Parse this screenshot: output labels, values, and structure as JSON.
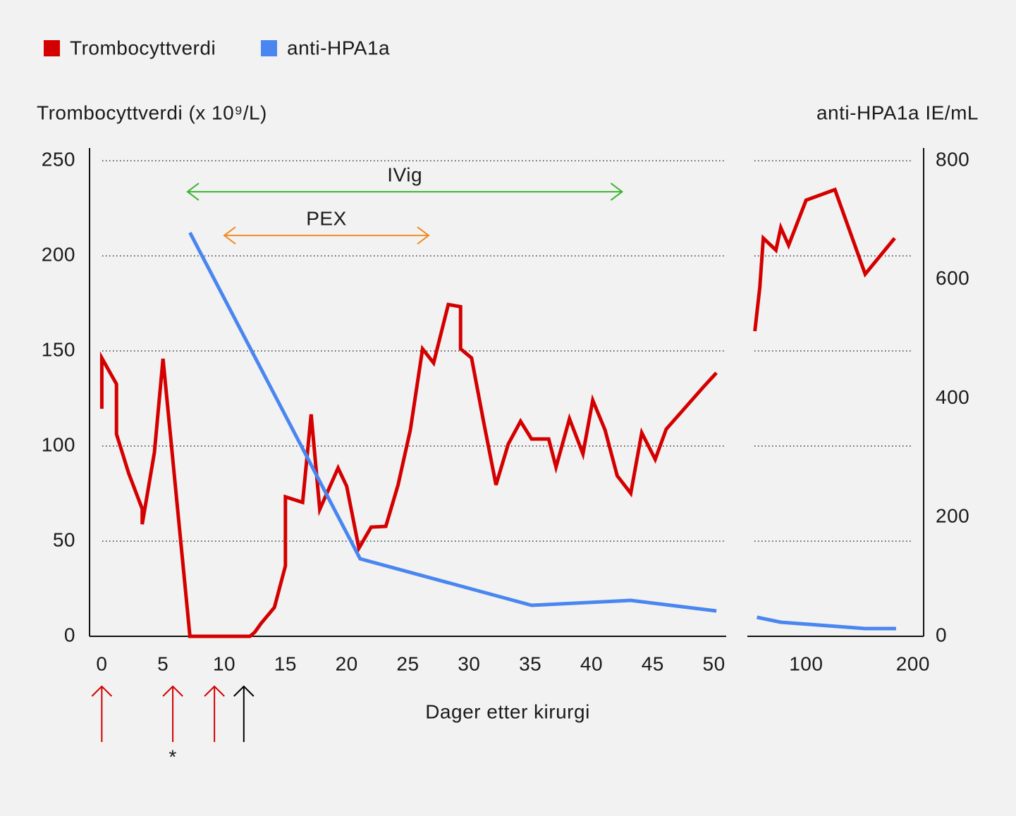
{
  "chart_data": {
    "type": "line",
    "y_label": "Trombocyttverdi (x 10⁹/L)",
    "y2_label": "anti-HPA1a IE/mL",
    "x_label": "Dager etter kirurgi",
    "ylim": [
      0,
      256.7
    ],
    "yticks": [
      0,
      50,
      100,
      150,
      200,
      250
    ],
    "y2lim": [
      0,
      821.3
    ],
    "y2ticks": [
      0,
      200,
      400,
      600,
      800
    ],
    "grid": true,
    "x_segments": [
      {
        "xlim": [
          -1,
          51
        ],
        "xticks": [
          0,
          5,
          10,
          15,
          20,
          25,
          30,
          35,
          40,
          45,
          50
        ]
      },
      {
        "xlim": [
          45,
          210
        ],
        "xticks": [
          100,
          200
        ]
      }
    ],
    "series": [
      {
        "name": "Trombocyttverdi",
        "color": "#d40000",
        "axis": "y",
        "segments": [
          {
            "x": [
              0,
              0,
              1.2,
              1.2,
              2.2,
              3.3,
              3.3,
              4.3,
              5.0,
              7.2,
              12.1,
              12.5,
              13.0,
              14.1,
              15.0,
              15.0,
              16.4,
              17.1,
              17.8,
              19.3,
              20.0,
              21.0,
              22.0,
              23.2,
              24.2,
              25.2,
              26.2,
              27.1,
              28.3,
              29.3,
              29.3,
              30.2,
              31.2,
              32.2,
              33.2,
              34.2,
              35.1,
              36.5,
              37.1,
              38.2,
              39.3,
              40.1,
              41.1,
              42.1,
              43.2,
              44.1,
              45.2,
              46.1,
              49.2,
              50.2
            ],
            "values": [
              119.6,
              146.3,
              132.6,
              106.3,
              85.6,
              67,
              58.9,
              96.7,
              145.9,
              0,
              0,
              2.2,
              6.7,
              15.2,
              37,
              73.3,
              70.4,
              116.7,
              66.7,
              88.5,
              78.9,
              46.3,
              57.4,
              57.8,
              79.6,
              108.5,
              151.1,
              143.7,
              174.4,
              173.3,
              151.1,
              146.3,
              112.2,
              79.6,
              101.1,
              113,
              103.7,
              103.7,
              88.9,
              114.4,
              95.9,
              124.1,
              108.5,
              84.4,
              75.2,
              107,
              93,
              108.9,
              131.5,
              138.5
            ]
          },
          {
            "x": [
              52,
              56.6,
              59.9,
              71.7,
              76.3,
              83.6,
              100,
              127,
              155.3,
              182.9
            ],
            "values": [
              160.4,
              183.3,
              209.3,
              203,
              214.8,
              205.6,
              229.3,
              234.8,
              190.4,
              209.3
            ]
          }
        ]
      },
      {
        "name": "anti-HPA1a",
        "color": "#4a86f0",
        "axis": "y2",
        "segments": [
          {
            "x": [
              7.2,
              21.1,
              35.1,
              43.2,
              50.2
            ],
            "values": [
              679,
              130.4,
              52.1,
              60.4,
              42.7
            ]
          },
          {
            "x": [
              54,
              76.3,
              155.3,
              184.2
            ],
            "values": [
              32,
              23.7,
              13,
              13
            ]
          }
        ]
      }
    ],
    "annotations": [
      {
        "text": "IVig",
        "x": [
          7.0,
          42.5
        ],
        "y": 233.7,
        "color": "#3cb331"
      },
      {
        "text": "PEX",
        "x": [
          10.0,
          26.7
        ],
        "y": 210.7,
        "color": "#f08a24"
      }
    ],
    "event_markers": [
      {
        "x": 0,
        "color": "#d40000"
      },
      {
        "x": 5.8,
        "color": "#d40000",
        "label": "*"
      },
      {
        "x": 9.2,
        "color": "#d40000"
      },
      {
        "x": 11.6,
        "color": "#000000"
      }
    ]
  }
}
